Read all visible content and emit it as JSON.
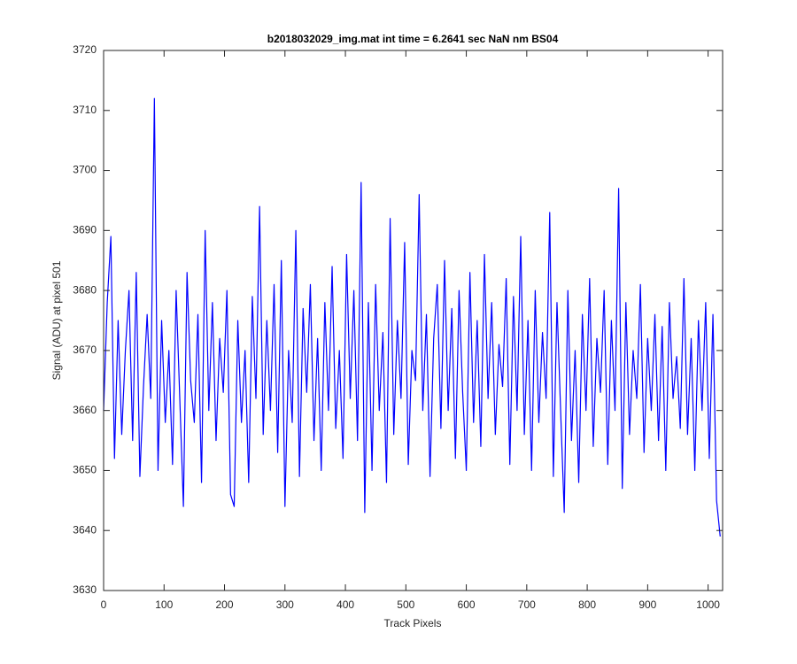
{
  "chart_data": {
    "type": "line",
    "title": "b2018032029_img.mat int time = 6.2641 sec  NaN nm BS04",
    "x_label": "Track Pixels",
    "y_label": "Signal (ADU) at pixel 501",
    "color": "#0000ff",
    "xlim": [
      0,
      1024
    ],
    "xticks": [
      0,
      100,
      200,
      300,
      400,
      500,
      600,
      700,
      800,
      900,
      1000
    ],
    "ylim": [
      3630,
      3720
    ],
    "yticks": [
      3630,
      3640,
      3650,
      3660,
      3670,
      3680,
      3690,
      3700,
      3710,
      3720
    ],
    "grid": false,
    "x": [
      0,
      6,
      12,
      18,
      24,
      30,
      36,
      42,
      48,
      54,
      60,
      66,
      72,
      78,
      84,
      90,
      96,
      102,
      108,
      114,
      120,
      126,
      132,
      138,
      144,
      150,
      156,
      162,
      168,
      174,
      180,
      186,
      192,
      198,
      204,
      210,
      216,
      222,
      228,
      234,
      240,
      246,
      252,
      258,
      264,
      270,
      276,
      282,
      288,
      294,
      300,
      306,
      312,
      318,
      324,
      330,
      336,
      342,
      348,
      354,
      360,
      366,
      372,
      378,
      384,
      390,
      396,
      402,
      408,
      414,
      420,
      426,
      432,
      438,
      444,
      450,
      456,
      462,
      468,
      474,
      480,
      486,
      492,
      498,
      504,
      510,
      516,
      522,
      528,
      534,
      540,
      546,
      552,
      558,
      564,
      570,
      576,
      582,
      588,
      594,
      600,
      606,
      612,
      618,
      624,
      630,
      636,
      642,
      648,
      654,
      660,
      666,
      672,
      678,
      684,
      690,
      696,
      702,
      708,
      714,
      720,
      726,
      732,
      738,
      744,
      750,
      756,
      762,
      768,
      774,
      780,
      786,
      792,
      798,
      804,
      810,
      816,
      822,
      828,
      834,
      840,
      846,
      852,
      858,
      864,
      870,
      876,
      882,
      888,
      894,
      900,
      906,
      912,
      918,
      924,
      930,
      936,
      942,
      948,
      954,
      960,
      966,
      972,
      978,
      984,
      990,
      996,
      1002,
      1008,
      1014,
      1020
    ],
    "values": [
      3660,
      3678,
      3689,
      3652,
      3675,
      3656,
      3670,
      3680,
      3655,
      3683,
      3649,
      3664,
      3676,
      3662,
      3712,
      3650,
      3675,
      3658,
      3670,
      3651,
      3680,
      3662,
      3644,
      3683,
      3665,
      3658,
      3676,
      3648,
      3690,
      3660,
      3678,
      3655,
      3672,
      3663,
      3680,
      3646,
      3644,
      3675,
      3658,
      3670,
      3648,
      3679,
      3662,
      3694,
      3656,
      3675,
      3660,
      3681,
      3653,
      3685,
      3644,
      3670,
      3658,
      3690,
      3649,
      3677,
      3663,
      3681,
      3655,
      3672,
      3650,
      3678,
      3660,
      3684,
      3657,
      3670,
      3652,
      3686,
      3662,
      3680,
      3655,
      3698,
      3643,
      3678,
      3650,
      3681,
      3660,
      3673,
      3648,
      3692,
      3656,
      3675,
      3662,
      3688,
      3651,
      3670,
      3665,
      3696,
      3660,
      3676,
      3649,
      3672,
      3681,
      3657,
      3685,
      3660,
      3677,
      3652,
      3680,
      3663,
      3650,
      3683,
      3658,
      3675,
      3654,
      3686,
      3662,
      3678,
      3656,
      3671,
      3664,
      3682,
      3651,
      3679,
      3660,
      3689,
      3656,
      3675,
      3650,
      3680,
      3658,
      3673,
      3662,
      3693,
      3649,
      3678,
      3660,
      3643,
      3680,
      3655,
      3670,
      3648,
      3676,
      3660,
      3682,
      3654,
      3672,
      3663,
      3680,
      3651,
      3675,
      3660,
      3697,
      3647,
      3678,
      3656,
      3670,
      3662,
      3681,
      3653,
      3672,
      3660,
      3676,
      3655,
      3674,
      3650,
      3678,
      3662,
      3669,
      3657,
      3682,
      3656,
      3672,
      3650,
      3675,
      3660,
      3678,
      3652,
      3676,
      3645,
      3639
    ]
  }
}
